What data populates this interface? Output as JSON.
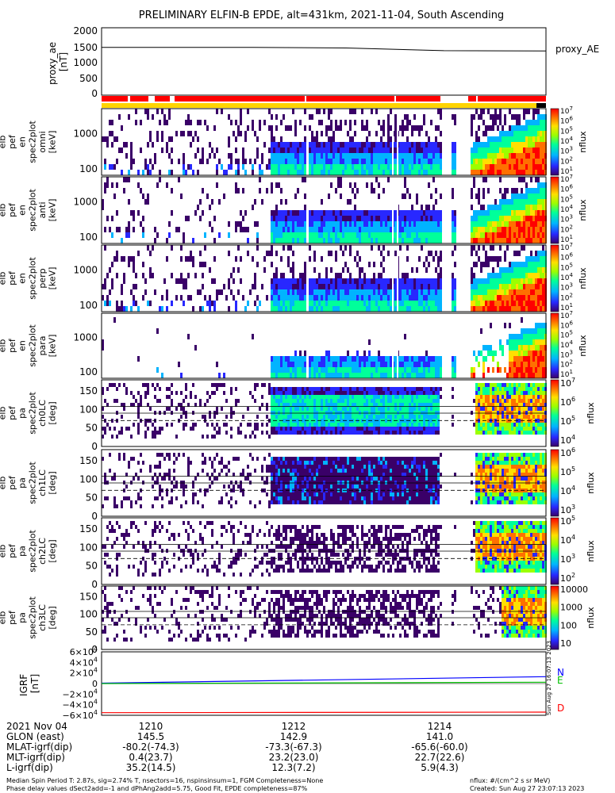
{
  "title": "PRELIMINARY ELFIN-B EPDE, alt=431km, 2021-11-04, South Ascending",
  "chart_data": [
    {
      "type": "line",
      "panel": "proxy_ae",
      "ylabel_lines": [
        "proxy_ae",
        "[nT]"
      ],
      "legend": "proxy_AE",
      "yticks": [
        "2000",
        "1500",
        "1000",
        "500",
        "0"
      ],
      "ylim": [
        0,
        2000
      ],
      "x_hours": [
        0.0,
        0.34,
        0.55,
        0.77,
        1.0
      ],
      "values": [
        1420,
        1420,
        1400,
        1320,
        1310
      ]
    },
    {
      "type": "heatmap",
      "panel": "elb_pef_en_spec2plot_omni",
      "ylabel_lines": [
        "elb",
        "pef",
        "en",
        "spec2plot",
        "omni",
        "[keV]"
      ],
      "yticks": [
        "1000",
        "100"
      ],
      "ylim_keV": [
        60,
        7000
      ],
      "colorbar_label": "nflux",
      "colorbar_max_label": "10",
      "colorbar_max_exp": "7",
      "colorbar_exps": [
        "6",
        "5",
        "4",
        "3",
        "2",
        "1"
      ],
      "colorbar_base": "10"
    },
    {
      "type": "heatmap",
      "panel": "elb_pef_en_spec2plot_anti",
      "ylabel_lines": [
        "elb",
        "pef",
        "en",
        "spec2plot",
        "anti",
        "[keV]"
      ],
      "yticks": [
        "1000",
        "100"
      ],
      "colorbar_label": "nflux",
      "colorbar_max_label": "10",
      "colorbar_max_exp": "7",
      "colorbar_exps": [
        "6",
        "5",
        "4",
        "3",
        "2",
        "1"
      ],
      "colorbar_base": "10"
    },
    {
      "type": "heatmap",
      "panel": "elb_pef_en_spec2plot_perp",
      "ylabel_lines": [
        "elb",
        "pef",
        "en",
        "spec2plot",
        "perp",
        "[keV]"
      ],
      "yticks": [
        "1000",
        "100"
      ],
      "colorbar_label": "nflux",
      "colorbar_max_label": "10",
      "colorbar_max_exp": "7",
      "colorbar_exps": [
        "6",
        "5",
        "4",
        "3",
        "2",
        "1"
      ],
      "colorbar_base": "10"
    },
    {
      "type": "heatmap",
      "panel": "elb_pef_en_spec2plot_para",
      "ylabel_lines": [
        "elb",
        "pef",
        "en",
        "spec2plot",
        "para",
        "[keV]"
      ],
      "yticks": [
        "1000",
        "100"
      ],
      "colorbar_label": "nflux",
      "colorbar_max_label": "10",
      "colorbar_max_exp": "7",
      "colorbar_exps": [
        "6",
        "5",
        "4",
        "3",
        "2",
        "1"
      ],
      "colorbar_base": "10"
    },
    {
      "type": "heatmap",
      "panel": "elb_pef_pa_spec2plot_ch0LC",
      "ylabel_lines": [
        "elb",
        "pef",
        "pa",
        "spec2plot",
        "ch0LC",
        "[deg]"
      ],
      "yticks": [
        "150",
        "100",
        "50",
        "0"
      ],
      "ylim_deg": [
        0,
        180
      ],
      "colorbar_label": "nflux",
      "colorbar_ticks": [
        {
          "base": "10",
          "exp": "7"
        },
        {
          "base": "10",
          "exp": "6"
        },
        {
          "base": "10",
          "exp": "5"
        },
        {
          "base": "10",
          "exp": "4"
        }
      ]
    },
    {
      "type": "heatmap",
      "panel": "elb_pef_pa_spec2plot_ch1LC",
      "ylabel_lines": [
        "elb",
        "pef",
        "pa",
        "spec2plot",
        "ch1LC",
        "[deg]"
      ],
      "yticks": [
        "150",
        "100",
        "50",
        "0"
      ],
      "colorbar_label": "nflux",
      "colorbar_ticks": [
        {
          "base": "10",
          "exp": "6"
        },
        {
          "base": "10",
          "exp": "5"
        },
        {
          "base": "10",
          "exp": "4"
        },
        {
          "base": "10",
          "exp": "3"
        }
      ]
    },
    {
      "type": "heatmap",
      "panel": "elb_pef_pa_spec2plot_ch2LC",
      "ylabel_lines": [
        "elb",
        "pef",
        "pa",
        "spec2plot",
        "ch2LC",
        "[deg]"
      ],
      "yticks": [
        "150",
        "100",
        "50",
        "0"
      ],
      "colorbar_label": "nflux",
      "colorbar_ticks": [
        {
          "base": "10",
          "exp": "5"
        },
        {
          "base": "10",
          "exp": "4"
        },
        {
          "base": "10",
          "exp": "3"
        },
        {
          "base": "10",
          "exp": "2"
        }
      ]
    },
    {
      "type": "heatmap",
      "panel": "elb_pef_pa_spec2plot_ch3LC",
      "ylabel_lines": [
        "elb",
        "pef",
        "pa",
        "spec2plot",
        "ch3LC",
        "[deg]"
      ],
      "yticks": [
        "150",
        "100",
        "50",
        "0"
      ],
      "colorbar_label": "nflux",
      "colorbar_ticks": [
        {
          "text": "10000"
        },
        {
          "text": "1000"
        },
        {
          "text": "100"
        },
        {
          "text": "10"
        }
      ]
    },
    {
      "type": "line",
      "panel": "IGRF",
      "ylabel_lines": [
        "IGRF",
        "[nT]"
      ],
      "yticks": [
        {
          "sign": "",
          "mant": "6×10",
          "exp": "4"
        },
        {
          "sign": "",
          "mant": "4×10",
          "exp": "4"
        },
        {
          "sign": "",
          "mant": "2×10",
          "exp": "4"
        },
        {
          "sign": "",
          "mant": "0",
          "exp": ""
        },
        {
          "sign": "−",
          "mant": "2×10",
          "exp": "4"
        },
        {
          "sign": "−",
          "mant": "4×10",
          "exp": "4"
        },
        {
          "sign": "−",
          "mant": "6×10",
          "exp": "4"
        }
      ],
      "ylim_nT": [
        -60000,
        60000
      ],
      "series": [
        {
          "name": "N",
          "color": "#0000ff",
          "x_hours": [
            0,
            1
          ],
          "values": [
            800,
            13000
          ]
        },
        {
          "name": "E",
          "color": "#00c000",
          "x_hours": [
            0,
            1
          ],
          "values": [
            0,
            2500
          ]
        },
        {
          "name": "D",
          "color": "#ff0000",
          "x_hours": [
            0,
            1
          ],
          "values": [
            -55000,
            -54000
          ]
        }
      ],
      "side_stamp": "Sun Aug 27 16:07:13 2023"
    }
  ],
  "xaxis": {
    "ticks": [
      "1210",
      "1212",
      "1214"
    ],
    "rows": [
      {
        "label": "2021 Nov 04",
        "values": [
          "1210",
          "1212",
          "1214"
        ]
      },
      {
        "label": "GLON (east)",
        "values": [
          "145.5",
          "142.9",
          "141.0"
        ]
      },
      {
        "label": "MLAT-igrf(dip)",
        "values": [
          "-80.2(-74.3)",
          "-73.3(-67.3)",
          "-65.6(-60.0)"
        ]
      },
      {
        "label": "MLT-igrf(dip)",
        "values": [
          "0.4(23.7)",
          "23.2(23.0)",
          "22.7(22.6)"
        ]
      },
      {
        "label": "L-igrf(dip)",
        "values": [
          "35.2(14.5)",
          "12.3(7.2)",
          "5.9(4.3)"
        ]
      }
    ]
  },
  "footer": {
    "line1_left": "Median Spin Period T: 2.87s, sig=2.74% T, nsectors=16, nspinsinsum=1, FGM Completeness=None",
    "line2_left": "Phase delay values dSect2add=-1 and dPhAng2add=5.75, Good Fit, EPDE completeness=87%",
    "line1_right": "nflux: #/(cm^2 s sr MeV)",
    "line2_right": "Created: Sun Aug 27 23:07:13 2023"
  },
  "colors": {
    "heat": [
      "#3a0068",
      "#2828ff",
      "#00b4ff",
      "#00ff9a",
      "#9bff00",
      "#ffe000",
      "#ff7000",
      "#ff0000"
    ],
    "status_red": "#ff0000",
    "status_yellow": "#ffd400",
    "status_black": "#000000"
  }
}
